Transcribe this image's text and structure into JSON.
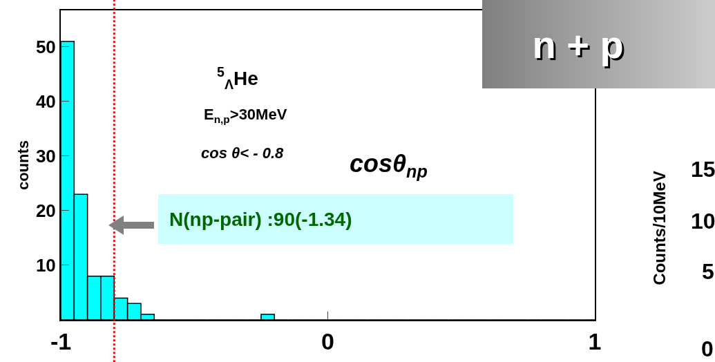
{
  "chart_data": [
    {
      "type": "histogram",
      "ylabel": "counts",
      "bins": [
        -1,
        -0.95,
        -0.9,
        -0.85,
        -0.8,
        -0.75,
        -0.7,
        -0.65,
        -0.6,
        -0.55,
        -0.5,
        -0.45,
        -0.4,
        -0.35,
        -0.3,
        -0.25,
        -0.2,
        -0.15,
        -0.1,
        -0.05,
        0,
        0.05,
        0.1,
        0.15,
        0.2,
        0.25,
        0.3,
        0.35,
        0.4,
        0.45,
        0.5,
        0.55,
        0.6,
        0.65,
        0.7,
        0.75,
        0.8,
        0.85,
        0.9,
        0.95,
        1
      ],
      "values": [
        51,
        23,
        8,
        8,
        4,
        3,
        1,
        0,
        0,
        0,
        0,
        0,
        0,
        0,
        0,
        1,
        0,
        0,
        0,
        0,
        0,
        0,
        0,
        0,
        0,
        0,
        0,
        0,
        0,
        0,
        0,
        0,
        0,
        0,
        0,
        0,
        0,
        0,
        0,
        0
      ],
      "color": "#00ffff",
      "xlim": [
        -1,
        1
      ],
      "xticks": [
        -1,
        0,
        1
      ],
      "ylim": [
        0,
        56.7
      ],
      "yticks": [
        10,
        20,
        30,
        40,
        50
      ],
      "grid": false,
      "ref_lines": [
        {
          "axis": "x",
          "value": -0.8,
          "color": "#ff0000",
          "line_style": "dotted"
        }
      ],
      "annotations": [
        "$^{5}$$_{Λ}$He",
        "E$_{n,p}$>30MeV",
        "cos θ< - 0.8",
        "cosθ$_{np}$",
        {
          "text": "N(np-pair) :90(-1.34)",
          "x": -0.8,
          "y": 18.5
        },
        "n + p"
      ]
    },
    {
      "type": "other",
      "ylabel": "Counts/10MeV",
      "annotations": [
        "15",
        "10",
        "5",
        "0"
      ]
    }
  ]
}
